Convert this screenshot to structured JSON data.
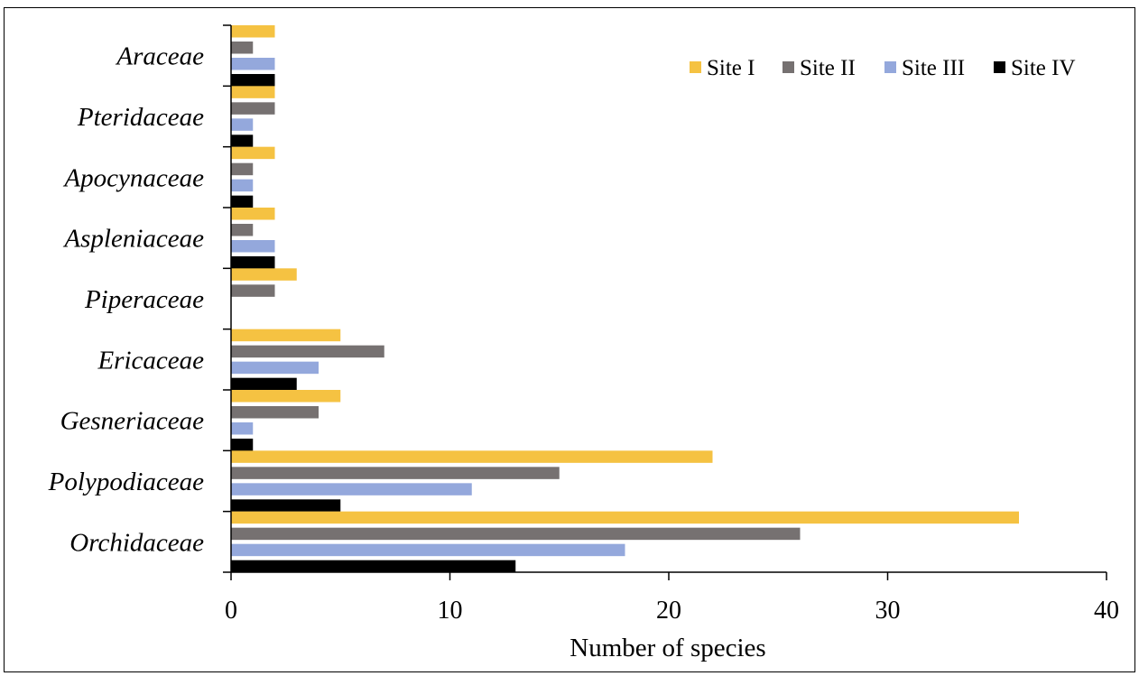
{
  "chart_data": {
    "type": "bar",
    "orientation": "horizontal",
    "categories": [
      "Araceae",
      "Pteridaceae",
      "Apocynaceae",
      "Aspleniaceae",
      "Piperaceae",
      "Ericaceae",
      "Gesneriaceae",
      "Polypodiaceae",
      "Orchidaceae"
    ],
    "series": [
      {
        "name": "Site I",
        "color": "#F5C242",
        "values": [
          2,
          2,
          2,
          2,
          3,
          5,
          5,
          22,
          36
        ]
      },
      {
        "name": "Site II",
        "color": "#767171",
        "values": [
          1,
          2,
          1,
          1,
          2,
          7,
          4,
          15,
          26
        ]
      },
      {
        "name": "Site III",
        "color": "#94A8DC",
        "values": [
          2,
          1,
          1,
          2,
          0,
          4,
          1,
          11,
          18
        ]
      },
      {
        "name": "Site IV",
        "color": "#000000",
        "values": [
          2,
          1,
          1,
          2,
          0,
          3,
          1,
          5,
          13
        ]
      }
    ],
    "xlim": [
      0,
      40
    ],
    "xticks": [
      "0",
      "10",
      "20",
      "30",
      "40"
    ],
    "xlabel": "Number of species",
    "ylabel": "",
    "grid": false,
    "legend_position": "top-right"
  }
}
